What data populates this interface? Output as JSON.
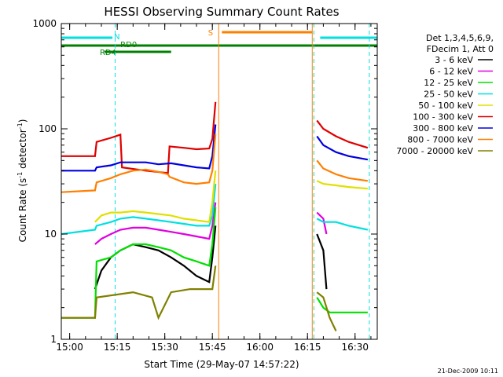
{
  "chart_data": {
    "type": "line",
    "title": "HESSI Observing Summary Count Rates",
    "xlabel": "Start Time (29-May-07 14:57:22)",
    "ylabel_main": "Count Rate (s",
    "ylabel_sup1": "-1",
    "ylabel_mid": " detector",
    "ylabel_sup2": "-1",
    "ylabel_end": ")",
    "y_scale": "log",
    "ylim": [
      1,
      1000
    ],
    "xlim": [
      "14:57:22",
      "16:37:00"
    ],
    "x_ticks": [
      "15:00",
      "15:15",
      "15:30",
      "15:45",
      "16:00",
      "16:15",
      "16:30"
    ],
    "y_ticks": [
      "1",
      "10",
      "100",
      "1000"
    ],
    "grid": false,
    "legend_position": "right",
    "legend_header": [
      "Det 1,3,4,5,6,9,",
      "FDecim 1, Att 0"
    ],
    "timestamp": "21-Dec-2009 10:11",
    "flags": [
      {
        "label": "N",
        "color": "#00e0e0",
        "segments": [
          [
            "14:57:22",
            "15:13:30"
          ],
          [
            "16:19:00",
            "16:37:00"
          ]
        ]
      },
      {
        "label": "S",
        "color": "#ff7f00",
        "segments": [
          [
            "15:48:00",
            "16:16:30"
          ]
        ]
      },
      {
        "label": "RD0",
        "color": "#008000",
        "segments": [
          [
            "14:57:22",
            "16:37:00"
          ]
        ]
      },
      {
        "label": "RD4",
        "color": "#008000",
        "segments": [
          [
            "15:11:00",
            "15:32:00"
          ]
        ]
      }
    ],
    "vertical_lines": [
      {
        "x": "14:57:22",
        "color": "#00e0e0",
        "style": "dashed"
      },
      {
        "x": "15:14:20",
        "color": "#00e0e0",
        "style": "dashed"
      },
      {
        "x": "15:47:00",
        "color": "#ff7f00",
        "style": "solid"
      },
      {
        "x": "16:16:30",
        "color": "#ff7f00",
        "style": "solid"
      },
      {
        "x": "16:17:00",
        "color": "#00e0e0",
        "style": "dashed"
      },
      {
        "x": "16:34:30",
        "color": "#00e0e0",
        "style": "dashed"
      }
    ],
    "series": [
      {
        "name": "3 - 6 keV",
        "color": "#000000",
        "x": [
          "15:08",
          "15:10",
          "15:13",
          "15:16",
          "15:20",
          "15:24",
          "15:28",
          "15:32",
          "15:36",
          "15:40",
          "15:44",
          "15:45",
          "15:46",
          "16:18",
          "16:20",
          "16:21"
        ],
        "y": [
          3,
          4.5,
          6,
          7,
          8,
          7.5,
          7,
          6,
          5,
          4,
          3.5,
          6,
          12,
          10,
          7,
          3
        ]
      },
      {
        "name": "6 - 12 keV",
        "color": "#e000e0",
        "x": [
          "15:08",
          "15:10",
          "15:13",
          "15:16",
          "15:20",
          "15:24",
          "15:28",
          "15:32",
          "15:36",
          "15:40",
          "15:44",
          "15:45",
          "15:46",
          "16:18",
          "16:20",
          "16:21"
        ],
        "y": [
          8,
          9,
          10,
          11,
          11.5,
          11.5,
          11,
          10.5,
          10,
          9.5,
          9,
          12,
          20,
          16,
          14,
          10
        ]
      },
      {
        "name": "12 - 25 keV",
        "color": "#00e000",
        "x": [
          "14:57:22",
          "15:08",
          "15:08:30",
          "15:13",
          "15:16",
          "15:20",
          "15:24",
          "15:28",
          "15:32",
          "15:36",
          "15:40",
          "15:44",
          "15:45",
          "15:46",
          "16:18",
          "16:20",
          "16:22",
          "16:34"
        ],
        "y": [
          1.6,
          1.6,
          5.5,
          6,
          7,
          8,
          8,
          7.5,
          7,
          6,
          5.5,
          5,
          8,
          18,
          2.5,
          2,
          1.8,
          1.8
        ]
      },
      {
        "name": "25 - 50 keV",
        "color": "#00e0e0",
        "x": [
          "14:57:22",
          "15:08",
          "15:08:30",
          "15:13",
          "15:16",
          "15:20",
          "15:24",
          "15:28",
          "15:32",
          "15:36",
          "15:40",
          "15:44",
          "15:45",
          "15:46",
          "16:18",
          "16:20",
          "16:24",
          "16:28",
          "16:34"
        ],
        "y": [
          10,
          11,
          12,
          13,
          14,
          14.5,
          14,
          13.5,
          13,
          12.5,
          12,
          12,
          15,
          30,
          14,
          13,
          13,
          12,
          11
        ]
      },
      {
        "name": "50 - 100 keV",
        "color": "#e0e000",
        "x": [
          "15:08",
          "15:10",
          "15:13",
          "15:16",
          "15:20",
          "15:24",
          "15:28",
          "15:32",
          "15:36",
          "15:40",
          "15:44",
          "15:45",
          "15:46",
          "16:18",
          "16:20",
          "16:24",
          "16:28",
          "16:34"
        ],
        "y": [
          13,
          15,
          16,
          16,
          16.5,
          16,
          15.5,
          15,
          14,
          13.5,
          13,
          20,
          40,
          32,
          30,
          29,
          28,
          27
        ]
      },
      {
        "name": "100 - 300 keV",
        "color": "#e00000",
        "x": [
          "14:57:22",
          "15:08",
          "15:08:30",
          "15:13",
          "15:16",
          "15:16:30",
          "15:24",
          "15:31",
          "15:31:30",
          "15:36",
          "15:40",
          "15:44",
          "15:45",
          "15:46",
          "16:18",
          "16:20",
          "16:24",
          "16:28",
          "16:34"
        ],
        "y": [
          55,
          55,
          75,
          82,
          88,
          43,
          40,
          38,
          68,
          66,
          64,
          65,
          80,
          180,
          120,
          100,
          85,
          75,
          66
        ]
      },
      {
        "name": "300 - 800 keV",
        "color": "#0000e0",
        "x": [
          "14:57:22",
          "15:08",
          "15:08:30",
          "15:13",
          "15:16",
          "15:20",
          "15:24",
          "15:28",
          "15:32",
          "15:36",
          "15:40",
          "15:44",
          "15:45",
          "15:46",
          "16:18",
          "16:20",
          "16:24",
          "16:28",
          "16:34"
        ],
        "y": [
          40,
          40,
          43,
          45,
          48,
          48,
          48,
          46,
          47,
          45,
          43,
          42,
          55,
          110,
          85,
          70,
          60,
          55,
          51
        ]
      },
      {
        "name": "800 - 7000 keV",
        "color": "#ff7f00",
        "x": [
          "14:57:22",
          "15:08",
          "15:08:30",
          "15:13",
          "15:16",
          "15:20",
          "15:24",
          "15:28",
          "15:31",
          "15:31:30",
          "15:36",
          "15:40",
          "15:44",
          "15:45",
          "15:46",
          "16:18",
          "16:20",
          "16:24",
          "16:28",
          "16:34"
        ],
        "y": [
          25,
          26,
          31,
          34,
          37,
          40,
          41,
          39,
          37,
          35,
          31,
          30,
          31,
          40,
          90,
          50,
          42,
          37,
          34,
          32
        ]
      },
      {
        "name": "7000 - 20000 keV",
        "color": "#808000",
        "x": [
          "14:57:22",
          "15:08",
          "15:08:30",
          "15:20",
          "15:26",
          "15:28",
          "15:32",
          "15:38",
          "15:44",
          "15:45",
          "15:46",
          "16:18",
          "16:20",
          "16:22",
          "16:24"
        ],
        "y": [
          1.6,
          1.6,
          2.5,
          2.8,
          2.5,
          1.6,
          2.8,
          3,
          3,
          3,
          5,
          2.8,
          2.5,
          1.6,
          1.2
        ]
      }
    ]
  }
}
